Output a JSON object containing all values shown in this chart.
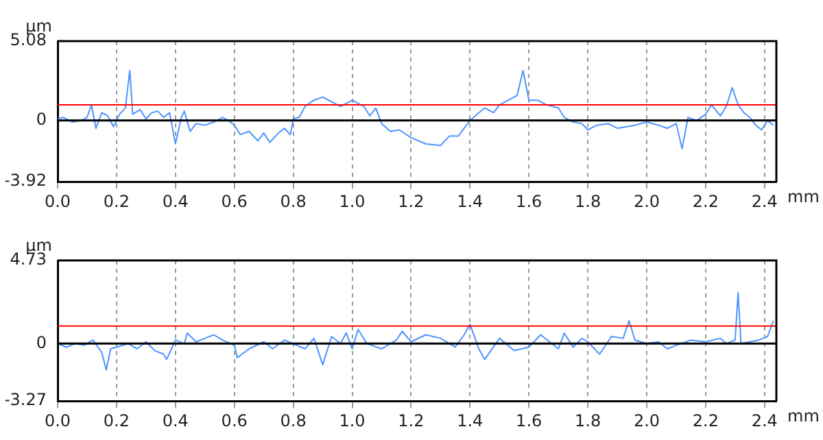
{
  "chart_data": [
    {
      "type": "line",
      "xlabel": "mm",
      "ylabel": "µm",
      "marker": "none",
      "grid": "x",
      "legend": false,
      "xlim": [
        0,
        2.44
      ],
      "ylim": [
        -3.92,
        5.08
      ],
      "xticks": [
        {
          "value": 0,
          "label": "0.0"
        },
        0.2,
        0.4,
        0.6,
        0.8,
        {
          "value": 1,
          "label": "1.0"
        },
        1.2,
        1.4,
        1.6,
        1.8,
        {
          "value": 2,
          "label": "2.0"
        },
        2.2,
        2.4
      ],
      "yticks": [
        -3.92,
        0,
        5.08
      ],
      "ref_lines": [
        {
          "axis": "y",
          "value": 1,
          "color": "#ff0000"
        },
        {
          "axis": "y",
          "value": 0,
          "color": "#000000"
        }
      ],
      "x": [
        0,
        0.02,
        0.05,
        0.08,
        0.1,
        0.115,
        0.13,
        0.15,
        0.17,
        0.19,
        0.21,
        0.23,
        0.245,
        0.255,
        0.28,
        0.3,
        0.32,
        0.34,
        0.36,
        0.38,
        0.4,
        0.42,
        0.43,
        0.45,
        0.47,
        0.5,
        0.53,
        0.56,
        0.58,
        0.6,
        0.62,
        0.65,
        0.68,
        0.7,
        0.72,
        0.75,
        0.77,
        0.79,
        0.8,
        0.82,
        0.84,
        0.87,
        0.9,
        0.93,
        0.96,
        1.0,
        1.04,
        1.06,
        1.08,
        1.1,
        1.13,
        1.16,
        1.2,
        1.25,
        1.3,
        1.33,
        1.36,
        1.38,
        1.4,
        1.43,
        1.45,
        1.48,
        1.5,
        1.53,
        1.56,
        1.58,
        1.6,
        1.63,
        1.66,
        1.7,
        1.72,
        1.75,
        1.78,
        1.8,
        1.83,
        1.87,
        1.9,
        1.93,
        1.96,
        2.0,
        2.04,
        2.07,
        2.1,
        2.12,
        2.14,
        2.17,
        2.2,
        2.22,
        2.25,
        2.27,
        2.29,
        2.31,
        2.33,
        2.35,
        2.37,
        2.39,
        2.41,
        2.43
      ],
      "series": [
        {
          "color": "#4d94ff",
          "values": [
            0.1,
            0.2,
            -0.1,
            0.0,
            0.2,
            1.0,
            -0.5,
            0.5,
            0.3,
            -0.4,
            0.4,
            0.8,
            3.2,
            0.4,
            0.7,
            0.1,
            0.5,
            0.6,
            0.2,
            0.5,
            -1.5,
            0.2,
            0.6,
            -0.7,
            -0.2,
            -0.3,
            -0.1,
            0.2,
            0.0,
            -0.3,
            -0.9,
            -0.7,
            -1.3,
            -0.8,
            -1.4,
            -0.8,
            -0.5,
            -0.9,
            0.1,
            0.2,
            0.9,
            1.3,
            1.5,
            1.2,
            0.9,
            1.3,
            0.9,
            0.3,
            0.8,
            -0.2,
            -0.7,
            -0.6,
            -1.1,
            -1.5,
            -1.6,
            -1.0,
            -1.0,
            -0.5,
            0.0,
            0.5,
            0.8,
            0.5,
            1.0,
            1.3,
            1.6,
            3.2,
            1.3,
            1.3,
            1.0,
            0.8,
            0.2,
            -0.1,
            -0.2,
            -0.6,
            -0.3,
            -0.2,
            -0.5,
            -0.4,
            -0.3,
            -0.1,
            -0.3,
            -0.5,
            -0.2,
            -1.8,
            0.2,
            0.0,
            0.4,
            1.0,
            0.3,
            0.9,
            2.1,
            1.0,
            0.5,
            0.2,
            -0.3,
            -0.6,
            0.0,
            -0.3
          ]
        }
      ]
    },
    {
      "type": "line",
      "xlabel": "mm",
      "ylabel": "µm",
      "marker": "none",
      "grid": "x",
      "legend": false,
      "xlim": [
        0,
        2.44
      ],
      "ylim": [
        -3.27,
        4.73
      ],
      "xticks": [
        {
          "value": 0,
          "label": "0.0"
        },
        0.2,
        0.4,
        0.6,
        0.8,
        {
          "value": 1,
          "label": "1.0"
        },
        1.2,
        1.4,
        1.6,
        1.8,
        {
          "value": 2,
          "label": "2.0"
        },
        2.2,
        2.4
      ],
      "yticks": [
        -3.27,
        0,
        4.73
      ],
      "ref_lines": [
        {
          "axis": "y",
          "value": 1,
          "color": "#ff0000"
        },
        {
          "axis": "y",
          "value": 0,
          "color": "#000000"
        }
      ],
      "x": [
        0,
        0.03,
        0.06,
        0.09,
        0.12,
        0.15,
        0.165,
        0.18,
        0.2,
        0.24,
        0.27,
        0.3,
        0.33,
        0.36,
        0.37,
        0.4,
        0.43,
        0.44,
        0.47,
        0.5,
        0.53,
        0.56,
        0.6,
        0.61,
        0.65,
        0.7,
        0.73,
        0.77,
        0.8,
        0.84,
        0.87,
        0.9,
        0.93,
        0.96,
        0.98,
        1.0,
        1.02,
        1.05,
        1.1,
        1.15,
        1.17,
        1.2,
        1.25,
        1.3,
        1.35,
        1.38,
        1.4,
        1.43,
        1.45,
        1.5,
        1.55,
        1.6,
        1.64,
        1.7,
        1.72,
        1.75,
        1.78,
        1.8,
        1.84,
        1.88,
        1.92,
        1.94,
        1.96,
        2.0,
        2.04,
        2.07,
        2.1,
        2.15,
        2.2,
        2.25,
        2.27,
        2.3,
        2.31,
        2.32,
        2.35,
        2.38,
        2.41,
        2.43
      ],
      "series": [
        {
          "color": "#4d94ff",
          "values": [
            0.0,
            -0.2,
            0.0,
            -0.1,
            0.2,
            -0.5,
            -1.5,
            -0.3,
            -0.2,
            0.0,
            -0.3,
            0.1,
            -0.4,
            -0.6,
            -0.9,
            0.2,
            0.0,
            0.6,
            0.1,
            0.3,
            0.5,
            0.2,
            -0.1,
            -0.8,
            -0.3,
            0.1,
            -0.3,
            0.2,
            0.0,
            -0.3,
            0.3,
            -1.2,
            0.4,
            0.0,
            0.6,
            -0.3,
            0.8,
            0.0,
            -0.3,
            0.2,
            0.7,
            0.1,
            0.5,
            0.3,
            -0.2,
            0.5,
            1.1,
            -0.3,
            -0.9,
            0.3,
            -0.4,
            -0.2,
            0.5,
            -0.3,
            0.6,
            -0.2,
            0.3,
            0.1,
            -0.6,
            0.4,
            0.3,
            1.3,
            0.2,
            0.0,
            0.1,
            -0.3,
            -0.1,
            0.2,
            0.1,
            0.3,
            0.0,
            0.2,
            2.9,
            0.0,
            0.1,
            0.2,
            0.4,
            1.3
          ]
        }
      ]
    }
  ]
}
